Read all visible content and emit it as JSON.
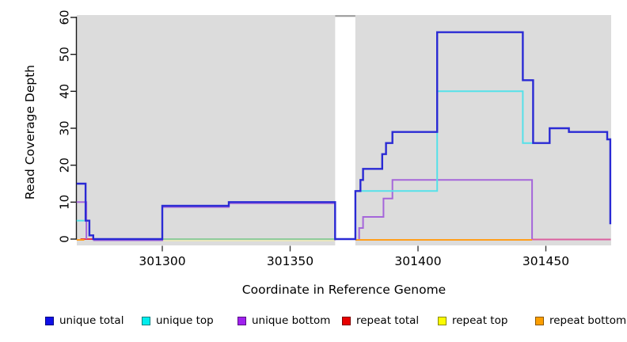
{
  "figure": {
    "x_axis": {
      "label": "Coordinate in Reference Genome",
      "ticks": [
        301300,
        301350,
        301400,
        301450
      ]
    },
    "y_axis": {
      "label": "Read Coverage Depth",
      "ticks": [
        0,
        10,
        20,
        30,
        40,
        50,
        60
      ]
    },
    "legend": [
      {
        "label": "unique total",
        "color": "#0F0FE8"
      },
      {
        "label": "unique top",
        "color": "#00EDED"
      },
      {
        "label": "unique bottom",
        "color": "#A020EF"
      },
      {
        "label": "repeat total",
        "color": "#E80000"
      },
      {
        "label": "repeat top",
        "color": "#FCFC00"
      },
      {
        "label": "repeat bottom",
        "color": "#FC9E00"
      }
    ],
    "plot_background": "#DCDCDC",
    "gap_band_color": "#FFFFFF"
  },
  "chart_data": {
    "type": "line",
    "style": "step",
    "title": "",
    "xlabel": "Coordinate in Reference Genome",
    "ylabel": "Read Coverage Depth",
    "xlim": [
      301266.5,
      301475.5
    ],
    "ylim": [
      0,
      60
    ],
    "grid": false,
    "legend_position": "bottom",
    "gap_region": {
      "x_start": 301367.6,
      "x_end": 301375.5,
      "note": "white masked band over plot"
    },
    "series": [
      {
        "name": "repeat top",
        "color": "#E9E6BE",
        "segments": [
          {
            "steps": [
              [
                301300,
                0
              ]
            ],
            "end": 301367.6,
            "dy": 2,
            "note": "pale yellow at depth 0, partly blended with unique top (green)"
          }
        ]
      },
      {
        "name": "repeat total",
        "color": "#E8374A",
        "segments": [
          {
            "steps": [
              [
                301268,
                0
              ]
            ],
            "end": 301274
          },
          {
            "steps": [
              [
                301444.6,
                0
              ]
            ],
            "end": 301475.4,
            "dy": 0.5,
            "color_override": "#DB609F",
            "note": "appears pink where red overlaps purple at depth 0"
          }
        ]
      },
      {
        "name": "repeat bottom",
        "color": "#FF9E1B",
        "segments": [
          {
            "steps": [
              [
                301266.5,
                0
              ]
            ],
            "end": 301269.5,
            "dy": 1
          },
          {
            "steps": [
              [
                301375.5,
                0
              ]
            ],
            "end": 301444.6,
            "dy": 1
          }
        ]
      },
      {
        "name": "unique bottom",
        "color": "#A566DA",
        "segments": [
          {
            "steps": [
              [
                301266.5,
                10
              ]
            ],
            "end": 301270.3,
            "drop_to": 0
          },
          {
            "steps": [
              [
                301273,
                0
              ],
              [
                301300,
                9
              ],
              [
                301326,
                10
              ]
            ],
            "end": 301367.6,
            "drop_to": 0,
            "dy": 1.5,
            "note": "coincides with unique total (violet appearance)"
          },
          {
            "rise_from": 0,
            "steps": [
              [
                301377,
                3
              ],
              [
                301378.5,
                6
              ],
              [
                301386.5,
                11
              ],
              [
                301390,
                16
              ]
            ],
            "end": 301444.6,
            "drop_to": 0
          }
        ]
      },
      {
        "name": "unique top",
        "color": "#55E1E9",
        "segments": [
          {
            "steps": [
              [
                301266.5,
                5
              ]
            ],
            "end": 301269.5
          },
          {
            "steps": [
              [
                301300,
                0
              ]
            ],
            "end": 301367.6,
            "color_override": "#8FCC9C",
            "note": "appears green where cyan overlaps repeat top (yellow) at depth 0"
          },
          {
            "steps": [
              [
                301376,
                13
              ],
              [
                301407.5,
                40
              ],
              [
                301441,
                26
              ]
            ],
            "end": 301445
          }
        ]
      },
      {
        "name": "unique total",
        "color": "#2A2AD4",
        "segments": [
          {
            "steps": [
              [
                301266.5,
                15
              ],
              [
                301270,
                5
              ],
              [
                301271.5,
                1
              ],
              [
                301273,
                0
              ],
              [
                301300,
                9
              ],
              [
                301326,
                10
              ],
              [
                301367.6,
                0
              ],
              [
                301375.5,
                13
              ],
              [
                301377.5,
                16
              ],
              [
                301378.5,
                19
              ],
              [
                301386,
                23
              ],
              [
                301387.5,
                26
              ],
              [
                301390,
                29
              ],
              [
                301407.5,
                56
              ],
              [
                301441,
                43
              ],
              [
                301445,
                26
              ],
              [
                301451.5,
                30
              ],
              [
                301459,
                29
              ],
              [
                301474,
                27
              ]
            ],
            "end": 301475.2,
            "drop_to": 4,
            "width": 2.4
          }
        ]
      }
    ]
  }
}
